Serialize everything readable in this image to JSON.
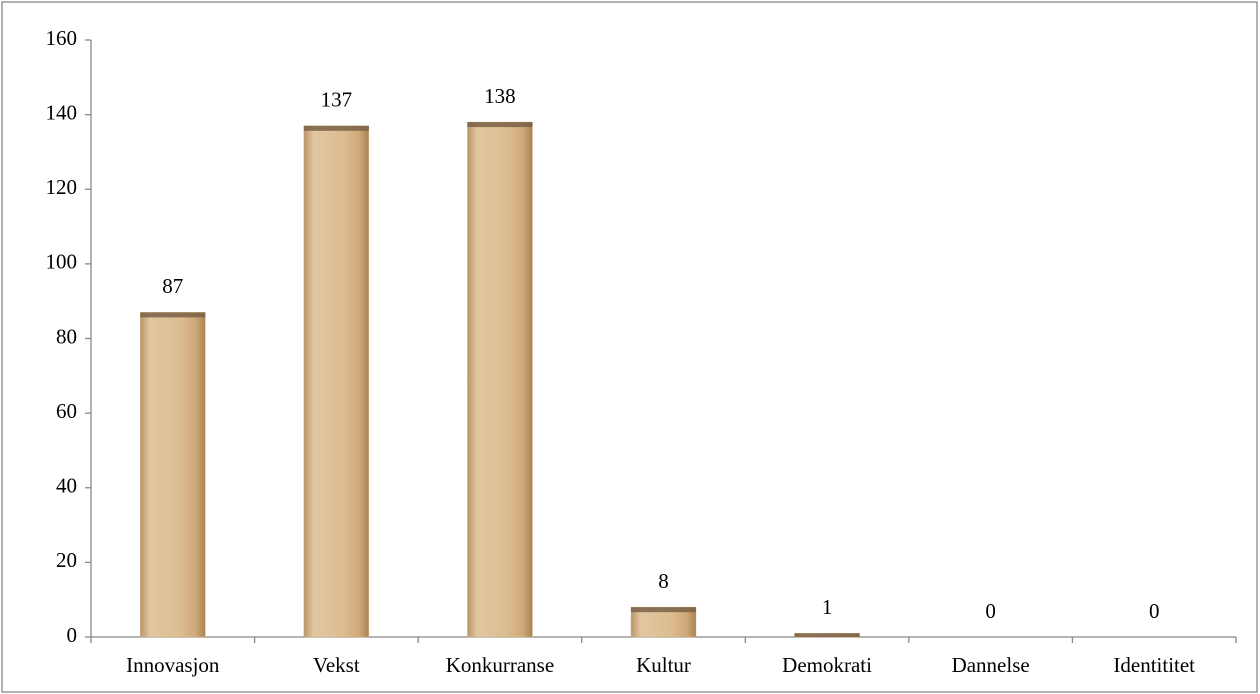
{
  "chart_data": {
    "type": "bar",
    "categories": [
      "Innovasjon",
      "Vekst",
      "Konkurranse",
      "Kultur",
      "Demokrati",
      "Dannelse",
      "Identititet"
    ],
    "values": [
      87,
      137,
      138,
      8,
      1,
      0,
      0
    ],
    "color": "#d8b88c",
    "ylim": [
      0,
      160
    ],
    "yticks": [
      0,
      20,
      40,
      60,
      80,
      100,
      120,
      140,
      160
    ],
    "grid": false,
    "data_labels": true
  }
}
